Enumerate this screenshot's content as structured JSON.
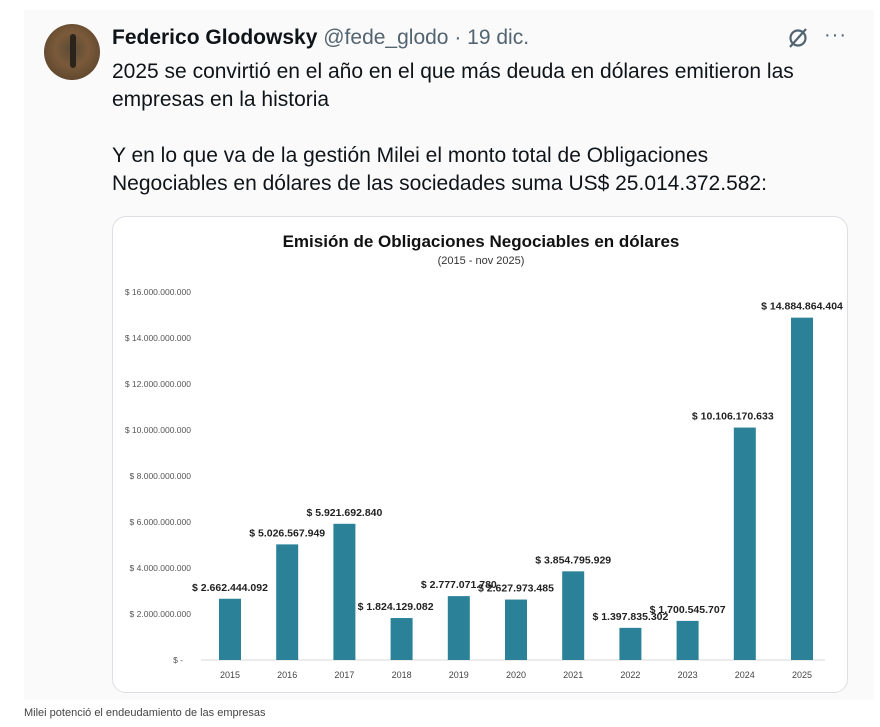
{
  "tweet": {
    "author_name": "Federico Glodowsky",
    "handle": "@fede_glodo",
    "separator": " · ",
    "date": "19 dic.",
    "paragraphs": [
      "2025 se convirtió en el año en el que más deuda en dólares emitieron las empresas en la historia",
      "Y en lo que va de la gestión Milei el monto total de Obligaciones Negociables en dólares de las sociedades suma US$ 25.014.372.582:"
    ],
    "grok_icon": "grok-icon",
    "more_icon": "more-icon",
    "more_label": "···"
  },
  "caption": "Milei potenció el endeudamiento de las empresas",
  "chart_data": {
    "type": "bar",
    "title": "Emisión de Obligaciones Negociables en dólares",
    "subtitle": "(2015 - nov 2025)",
    "xlabel": "",
    "ylabel": "",
    "ylim": [
      0,
      16000000000
    ],
    "yticks": [
      0,
      2000000000,
      4000000000,
      6000000000,
      8000000000,
      10000000000,
      12000000000,
      14000000000,
      16000000000
    ],
    "ytick_labels": [
      "$ -",
      "$ 2.000.000.000",
      "$ 4.000.000.000",
      "$ 6.000.000.000",
      "$ 8.000.000.000",
      "$ 10.000.000.000",
      "$ 12.000.000.000",
      "$ 14.000.000.000",
      "$ 16.000.000.000"
    ],
    "categories": [
      "2015",
      "2016",
      "2017",
      "2018",
      "2019",
      "2020",
      "2021",
      "2022",
      "2023",
      "2024",
      "2025"
    ],
    "values": [
      2662444092,
      5026567949,
      5921692840,
      1824129082,
      2777071780,
      2627973485,
      3854795929,
      1397835302,
      1700545707,
      10106170633,
      14884864404
    ],
    "data_labels": [
      "$ 2.662.444.092",
      "$ 5.026.567.949",
      "$ 5.921.692.840",
      "$ 1.824.129.082",
      "$ 2.777.071.780",
      "$ 2.627.973.485",
      "$ 3.854.795.929",
      "$ 1.397.835.302",
      "$ 1.700.545.707",
      "$ 10.106.170.633",
      "$ 14.884.864.404"
    ],
    "bar_color": "#2a8198",
    "grid": false,
    "legend": "none"
  }
}
